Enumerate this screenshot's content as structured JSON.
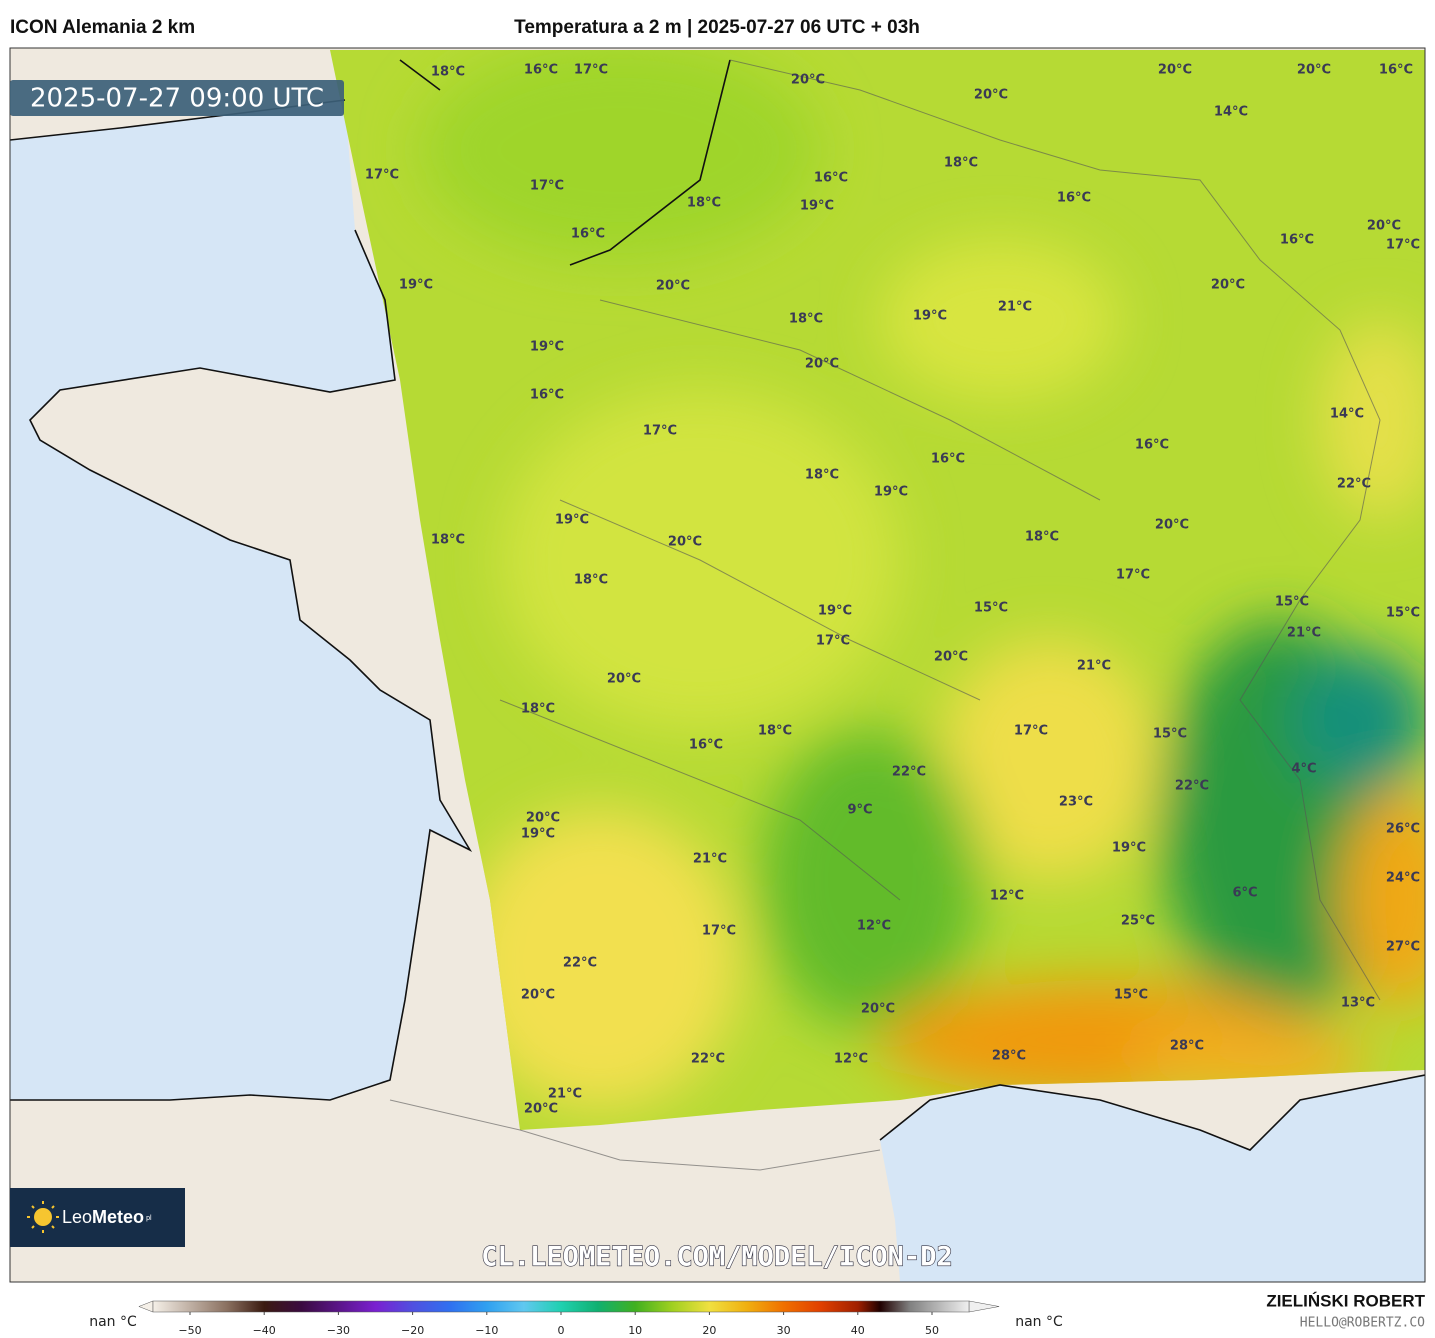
{
  "header": {
    "model": "ICON Alemania 2 km",
    "title": "Temperatura a 2 m | 2025-07-27 06 UTC + 03h"
  },
  "map": {
    "timestamp": "2025-07-27 09:00 UTC",
    "watermark": "CL.LEOMETEO.COM/MODEL/ICON-D2",
    "labels": [
      "18°C",
      "16°C",
      "17°C",
      "20°C",
      "20°C",
      "20°C",
      "20°C",
      "16°C",
      "14°C",
      "17°C",
      "17°C",
      "18°C",
      "16°C",
      "18°C",
      "19°C",
      "16°C",
      "16°C",
      "20°C",
      "16°C",
      "17°C",
      "19°C",
      "20°C",
      "20°C",
      "21°C",
      "18°C",
      "19°C",
      "19°C",
      "20°C",
      "16°C",
      "14°C",
      "17°C",
      "16°C",
      "16°C",
      "18°C",
      "19°C",
      "22°C",
      "19°C",
      "20°C",
      "18°C",
      "20°C",
      "18°C",
      "18°C",
      "17°C",
      "15°C",
      "15°C",
      "19°C",
      "15°C",
      "21°C",
      "17°C",
      "20°C",
      "21°C",
      "20°C",
      "18°C",
      "18°C",
      "17°C",
      "15°C",
      "16°C",
      "22°C",
      "4°C",
      "22°C",
      "23°C",
      "9°C",
      "20°C",
      "19°C",
      "26°C",
      "19°C",
      "21°C",
      "12°C",
      "6°C",
      "24°C",
      "25°C",
      "12°C",
      "17°C",
      "27°C",
      "22°C",
      "20°C",
      "15°C",
      "13°C",
      "20°C",
      "28°C",
      "28°C",
      "22°C",
      "12°C",
      "21°C",
      "20°C"
    ]
  },
  "logo": {
    "leo": "Leo",
    "meteo": "Meteo",
    "domain": "pl"
  },
  "colorbar": {
    "left_label": "nan °C",
    "right_label": "nan °C",
    "lim": [
      -55,
      55
    ],
    "ticks": [
      {
        "value": -50,
        "label": "−50"
      },
      {
        "value": -40,
        "label": "−40"
      },
      {
        "value": -30,
        "label": "−30"
      },
      {
        "value": -20,
        "label": "−20"
      },
      {
        "value": -10,
        "label": "−10"
      },
      0,
      10,
      20,
      30,
      40,
      50
    ],
    "stops": [
      {
        "value": -55,
        "color": "#f5f0e8"
      },
      {
        "value": -45,
        "color": "#8a7060"
      },
      {
        "value": -40,
        "color": "#3a1a10"
      },
      {
        "value": -35,
        "color": "#3a0a40"
      },
      {
        "value": -25,
        "color": "#7a20d0"
      },
      {
        "value": -20,
        "color": "#5050e0"
      },
      {
        "value": -15,
        "color": "#3070f0"
      },
      {
        "value": -10,
        "color": "#30a0f0"
      },
      {
        "value": -5,
        "color": "#60c8f0"
      },
      {
        "value": 0,
        "color": "#20d0b0"
      },
      {
        "value": 5,
        "color": "#10b070"
      },
      {
        "value": 10,
        "color": "#40b020"
      },
      {
        "value": 15,
        "color": "#a0d020"
      },
      {
        "value": 20,
        "color": "#f0e040"
      },
      {
        "value": 25,
        "color": "#f0b010"
      },
      {
        "value": 30,
        "color": "#f07000"
      },
      {
        "value": 35,
        "color": "#e04000"
      },
      {
        "value": 40,
        "color": "#a02000"
      },
      {
        "value": 43,
        "color": "#200000"
      },
      {
        "value": 47,
        "color": "#808080"
      },
      {
        "value": 55,
        "color": "#f0f0f0"
      }
    ]
  },
  "credits": {
    "name": "ZIELIŃSKI ROBERT",
    "email": "HELLO@ROBERTZ.CO"
  }
}
